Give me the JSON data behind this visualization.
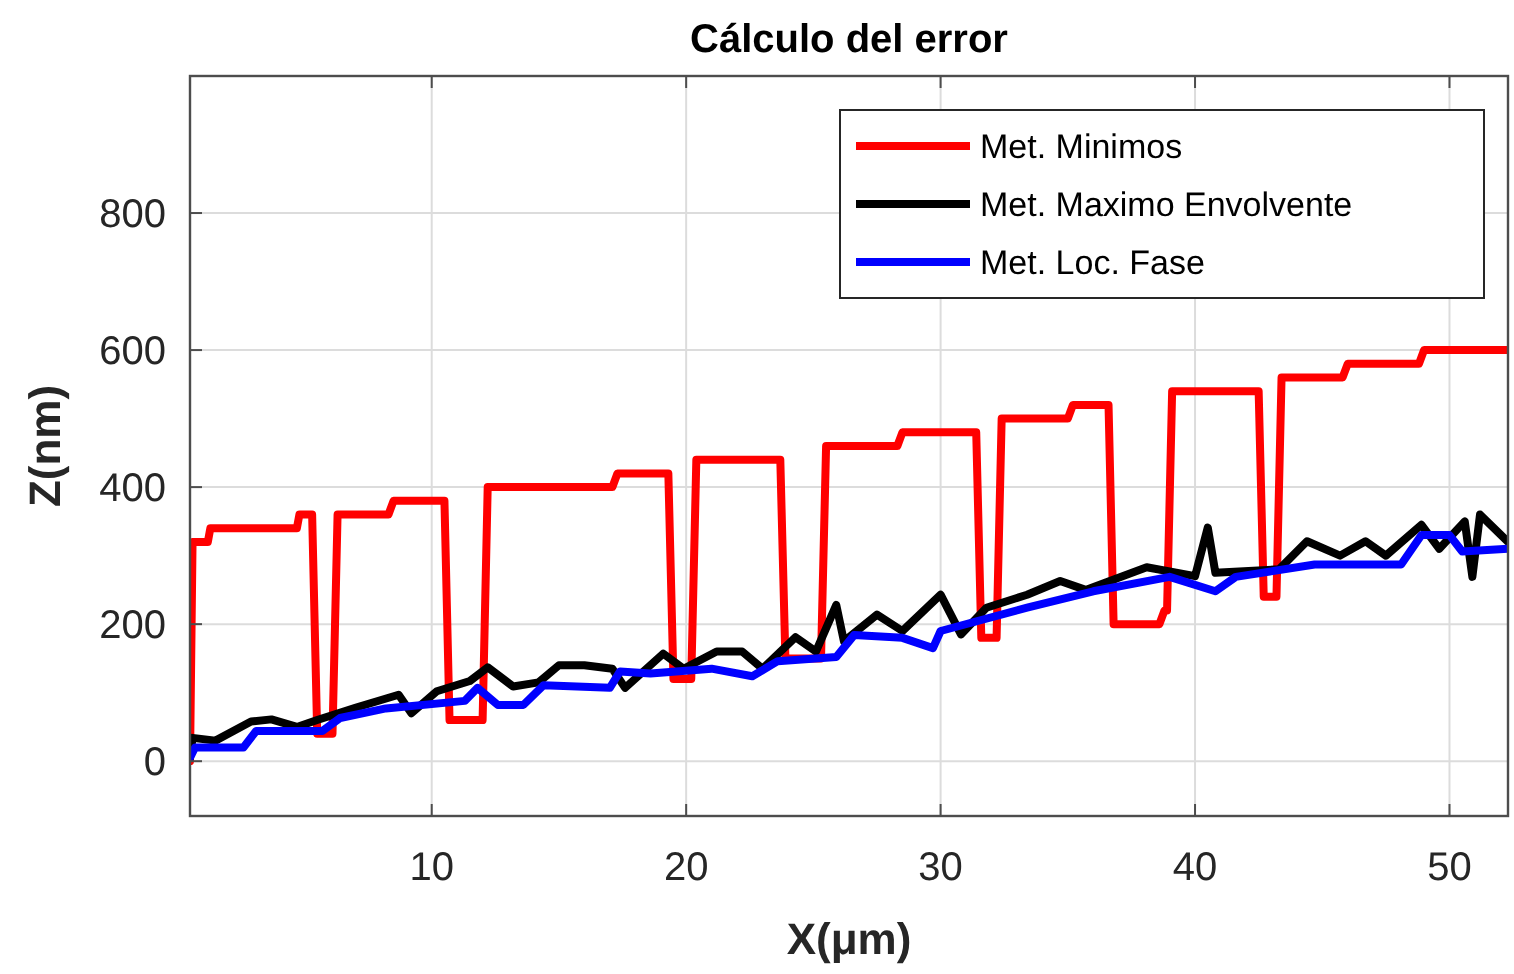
{
  "chart_data": {
    "type": "line",
    "title": "Cálculo del error",
    "xlabel": "X(μm)",
    "ylabel": "Z(nm)",
    "xlim": [
      0.5,
      52.3
    ],
    "ylim": [
      -80,
      1000
    ],
    "xticks": [
      10,
      20,
      30,
      40,
      50
    ],
    "yticks": [
      0,
      200,
      400,
      600,
      800
    ],
    "grid": true,
    "legend": "top right",
    "line_style": "solid",
    "series": [
      {
        "name": "Met. Minimos",
        "color": "#ff0000",
        "x": [
          0.5,
          0.6,
          1.2,
          1.3,
          4.7,
          4.8,
          5.3,
          5.5,
          6.1,
          6.3,
          8.3,
          8.5,
          10.5,
          10.7,
          12.0,
          12.2,
          17.1,
          17.3,
          19.3,
          19.5,
          20.2,
          20.4,
          23.7,
          23.9,
          25.3,
          25.5,
          28.3,
          28.5,
          31.4,
          31.6,
          32.2,
          32.4,
          35.0,
          35.2,
          36.6,
          36.8,
          38.6,
          38.8,
          38.9,
          39.1,
          42.5,
          42.7,
          43.2,
          43.4,
          45.8,
          46.0,
          48.8,
          49.0,
          52.3
        ],
        "values": [
          0,
          320,
          320,
          340,
          340,
          360,
          360,
          40,
          40,
          360,
          360,
          380,
          380,
          60,
          60,
          400,
          400,
          420,
          420,
          120,
          120,
          440,
          440,
          150,
          150,
          460,
          460,
          480,
          480,
          180,
          180,
          500,
          500,
          520,
          520,
          200,
          200,
          220,
          220,
          540,
          540,
          240,
          240,
          560,
          560,
          580,
          580,
          600,
          600
        ]
      },
      {
        "name": "Met. Maximo Envolvente",
        "color": "#000000",
        "x": [
          0.5,
          0.6,
          1.5,
          2.9,
          3.7,
          4.7,
          5.5,
          7.0,
          8.7,
          9.2,
          10.2,
          11.5,
          12.2,
          13.2,
          14.2,
          15.0,
          16.0,
          17.1,
          17.6,
          19.1,
          19.9,
          21.2,
          22.2,
          23.0,
          24.3,
          25.1,
          25.9,
          26.2,
          27.5,
          28.5,
          30.0,
          30.8,
          31.8,
          33.4,
          34.7,
          35.7,
          38.1,
          40.0,
          40.5,
          40.8,
          43.3,
          44.4,
          45.7,
          46.7,
          47.5,
          48.9,
          49.6,
          50.6,
          50.9,
          51.2,
          52.3
        ],
        "values": [
          5,
          34,
          30,
          58,
          61,
          50,
          60,
          78,
          97,
          70,
          102,
          117,
          137,
          109,
          115,
          140,
          140,
          135,
          107,
          157,
          135,
          160,
          160,
          135,
          181,
          160,
          228,
          175,
          214,
          190,
          243,
          185,
          224,
          243,
          263,
          250,
          283,
          270,
          341,
          275,
          280,
          321,
          300,
          321,
          300,
          345,
          310,
          350,
          269,
          360,
          320
        ]
      },
      {
        "name": "Met. Loc. Fase",
        "color": "#0000ff",
        "x": [
          0.5,
          0.7,
          2.6,
          3.1,
          5.7,
          6.4,
          8.2,
          11.3,
          11.8,
          12.6,
          13.6,
          14.4,
          17.0,
          17.4,
          18.6,
          21.0,
          22.6,
          23.6,
          25.9,
          26.6,
          28.5,
          29.7,
          30.0,
          33.4,
          36.0,
          39.0,
          40.8,
          41.6,
          44.7,
          48.1,
          48.9,
          50.0,
          50.5,
          52.3
        ],
        "values": [
          5,
          20,
          20,
          44,
          44,
          63,
          77,
          88,
          107,
          82,
          82,
          111,
          107,
          131,
          128,
          135,
          124,
          146,
          152,
          184,
          180,
          165,
          190,
          224,
          248,
          269,
          248,
          269,
          287,
          287,
          330,
          330,
          306,
          310
        ]
      }
    ]
  }
}
